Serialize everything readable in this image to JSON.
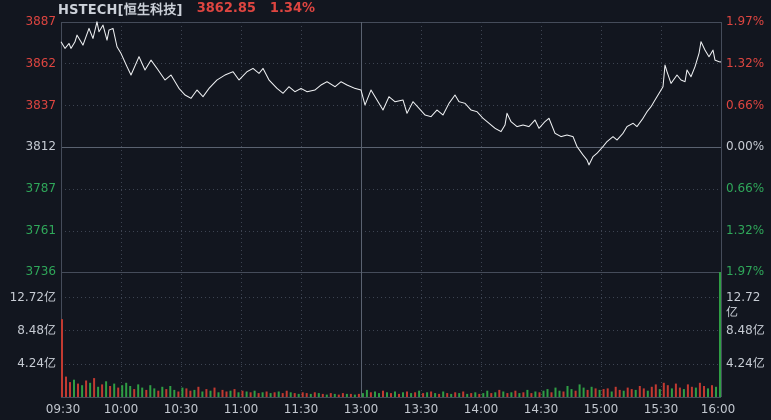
{
  "header": {
    "symbol": "HSTECH[恒生科技]",
    "price": "3862.85",
    "change_percent": "1.34%"
  },
  "colors": {
    "up": "#de4540",
    "down": "#2fa85a",
    "neutral_text": "#c7ccd4",
    "price_line": "#f3f5f7",
    "background": "#12161f",
    "grid_dotted": "#3d4452",
    "grid_solid": "#454c5a",
    "prev_close_line": "#5a6270",
    "volume_up": "#c23a31",
    "volume_down": "#2f9e44"
  },
  "axes": {
    "price": [
      {
        "text": "3887",
        "tone": "up"
      },
      {
        "text": "3862",
        "tone": "up"
      },
      {
        "text": "3837",
        "tone": "up"
      },
      {
        "text": "3812",
        "tone": "flat"
      },
      {
        "text": "3787",
        "tone": "down"
      },
      {
        "text": "3761",
        "tone": "down"
      },
      {
        "text": "3736",
        "tone": "down"
      }
    ],
    "percent": [
      {
        "text": "1.97%",
        "tone": "up"
      },
      {
        "text": "1.32%",
        "tone": "up"
      },
      {
        "text": "0.66%",
        "tone": "up"
      },
      {
        "text": "0.00%",
        "tone": "flat"
      },
      {
        "text": "0.66%",
        "tone": "down"
      },
      {
        "text": "1.32%",
        "tone": "down"
      },
      {
        "text": "1.97%",
        "tone": "down"
      }
    ],
    "volume_left": [
      "12.72亿",
      "8.48亿",
      "4.24亿"
    ],
    "volume_right": [
      "12.72亿",
      "8.48亿",
      "4.24亿"
    ],
    "time": [
      "09:30",
      "10:00",
      "10:30",
      "11:00",
      "11:30",
      "13:00",
      "13:30",
      "14:00",
      "14:30",
      "15:00",
      "15:30",
      "16:00"
    ]
  },
  "chart_data": {
    "type": "line",
    "title": "HSTECH 恒生科技 intraday price and volume",
    "prev_close": 3811.77,
    "last_price": 3862.85,
    "change_percent": 1.34,
    "day_high": 3887,
    "day_low": 3801,
    "ylim": [
      3736.68,
      3886.86
    ],
    "percent_levels": [
      1.97,
      1.32,
      0.66,
      0,
      -0.66,
      -1.32,
      -1.97
    ],
    "price_levels": [
      3887,
      3862,
      3837,
      3812,
      3787,
      3761,
      3736
    ],
    "x_ticks": [
      "09:30",
      "10:00",
      "10:30",
      "11:00",
      "11:30",
      "13:00",
      "13:30",
      "14:00",
      "14:30",
      "15:00",
      "15:30",
      "16:00"
    ],
    "session_break_tick_index": 5,
    "minutes_total": 330,
    "grid": "dotted",
    "series": [
      {
        "name": "price",
        "type": "line",
        "x_unit": "minutes_since_0930_trading",
        "points": [
          [
            0,
            3875
          ],
          [
            2,
            3871
          ],
          [
            4,
            3874
          ],
          [
            5,
            3871
          ],
          [
            7,
            3875
          ],
          [
            8,
            3879
          ],
          [
            11,
            3873
          ],
          [
            14,
            3883
          ],
          [
            16,
            3877
          ],
          [
            18,
            3887
          ],
          [
            19,
            3881
          ],
          [
            21,
            3885
          ],
          [
            23,
            3876
          ],
          [
            24,
            3882
          ],
          [
            26,
            3883
          ],
          [
            28,
            3872
          ],
          [
            30,
            3868
          ],
          [
            33,
            3860
          ],
          [
            35,
            3855
          ],
          [
            39,
            3866
          ],
          [
            42,
            3858
          ],
          [
            45,
            3864
          ],
          [
            48,
            3859
          ],
          [
            52,
            3852
          ],
          [
            55,
            3855
          ],
          [
            59,
            3847
          ],
          [
            62,
            3843
          ],
          [
            65,
            3841
          ],
          [
            68,
            3846
          ],
          [
            71,
            3842
          ],
          [
            74,
            3847
          ],
          [
            78,
            3852
          ],
          [
            82,
            3855
          ],
          [
            86,
            3857
          ],
          [
            89,
            3852
          ],
          [
            93,
            3857
          ],
          [
            96,
            3859
          ],
          [
            99,
            3856
          ],
          [
            101,
            3859
          ],
          [
            104,
            3852
          ],
          [
            108,
            3847
          ],
          [
            111,
            3844
          ],
          [
            114,
            3848
          ],
          [
            117,
            3845
          ],
          [
            120,
            3847
          ],
          [
            123,
            3845
          ],
          [
            127,
            3846
          ],
          [
            130,
            3849
          ],
          [
            133,
            3851
          ],
          [
            137,
            3848
          ],
          [
            140,
            3851
          ],
          [
            143,
            3849
          ],
          [
            147,
            3847
          ],
          [
            150,
            3846
          ],
          [
            152,
            3837
          ],
          [
            155,
            3846
          ],
          [
            158,
            3840
          ],
          [
            161,
            3834
          ],
          [
            164,
            3842
          ],
          [
            167,
            3839
          ],
          [
            171,
            3840
          ],
          [
            173,
            3832
          ],
          [
            176,
            3839
          ],
          [
            179,
            3835
          ],
          [
            182,
            3831
          ],
          [
            185,
            3830
          ],
          [
            188,
            3834
          ],
          [
            191,
            3831
          ],
          [
            194,
            3838
          ],
          [
            197,
            3843
          ],
          [
            199,
            3839
          ],
          [
            202,
            3838
          ],
          [
            205,
            3834
          ],
          [
            208,
            3833
          ],
          [
            211,
            3829
          ],
          [
            214,
            3826
          ],
          [
            217,
            3823
          ],
          [
            220,
            3821
          ],
          [
            222,
            3825
          ],
          [
            223,
            3832
          ],
          [
            225,
            3827
          ],
          [
            228,
            3824
          ],
          [
            231,
            3825
          ],
          [
            234,
            3824
          ],
          [
            237,
            3828
          ],
          [
            239,
            3823
          ],
          [
            242,
            3827
          ],
          [
            244,
            3829
          ],
          [
            247,
            3820
          ],
          [
            250,
            3818
          ],
          [
            253,
            3819
          ],
          [
            256,
            3818
          ],
          [
            258,
            3812
          ],
          [
            261,
            3807
          ],
          [
            263,
            3804
          ],
          [
            264,
            3801
          ],
          [
            266,
            3806
          ],
          [
            268,
            3808
          ],
          [
            271,
            3812
          ],
          [
            273,
            3815
          ],
          [
            276,
            3818
          ],
          [
            278,
            3816
          ],
          [
            281,
            3820
          ],
          [
            283,
            3824
          ],
          [
            286,
            3826
          ],
          [
            288,
            3824
          ],
          [
            291,
            3829
          ],
          [
            293,
            3833
          ],
          [
            295,
            3836
          ],
          [
            297,
            3840
          ],
          [
            301,
            3848
          ],
          [
            302,
            3861
          ],
          [
            303,
            3857
          ],
          [
            305,
            3850
          ],
          [
            308,
            3855
          ],
          [
            310,
            3852
          ],
          [
            312,
            3851
          ],
          [
            313,
            3858
          ],
          [
            315,
            3854
          ],
          [
            317,
            3860
          ],
          [
            319,
            3868
          ],
          [
            320,
            3875
          ],
          [
            322,
            3870
          ],
          [
            324,
            3866
          ],
          [
            326,
            3870
          ],
          [
            327,
            3864
          ],
          [
            329,
            3863
          ],
          [
            330,
            3862.85
          ]
        ]
      },
      {
        "name": "volume",
        "type": "bar",
        "unit": "亿",
        "interval_minutes": 2,
        "ylim": [
          0,
          13.5
        ],
        "gridlines": [
          4.24,
          8.48,
          12.72
        ],
        "sign_meaning": "positive = up-tick (red), negative = down-tick (green)",
        "values": [
          9.9,
          2.6,
          1.9,
          -2.2,
          1.7,
          -1.5,
          2.1,
          -1.8,
          2.4,
          -1.3,
          1.6,
          -2.0,
          1.4,
          -1.7,
          1.2,
          -1.5,
          -1.8,
          -1.4,
          1.0,
          -1.6,
          -1.2,
          0.9,
          -1.5,
          -1.1,
          0.8,
          -1.3,
          1.0,
          -1.4,
          -0.9,
          0.7,
          -1.2,
          1.1,
          0.8,
          -0.9,
          1.3,
          -0.7,
          1.0,
          -0.8,
          1.2,
          -0.6,
          0.9,
          0.7,
          -0.8,
          1.0,
          -0.6,
          0.8,
          -0.7,
          0.6,
          -0.8,
          0.5,
          -0.6,
          0.7,
          -0.5,
          0.6,
          -0.7,
          0.5,
          0.8,
          -0.6,
          0.5,
          -0.4,
          0.6,
          0.5,
          -0.4,
          0.6,
          -0.5,
          0.4,
          -0.3,
          0.5,
          -0.4,
          0.3,
          0.5,
          -0.4,
          0.4,
          -0.3,
          0.4,
          -0.5,
          -0.9,
          0.6,
          -0.7,
          -0.5,
          0.8,
          -0.6,
          0.5,
          -0.7,
          0.4,
          -0.6,
          0.7,
          -0.5,
          0.6,
          -0.8,
          0.5,
          -0.6,
          0.7,
          -0.5,
          0.4,
          -0.7,
          0.5,
          -0.4,
          0.6,
          -0.5,
          0.7,
          -0.4,
          0.5,
          -0.6,
          0.4,
          -0.5,
          -0.8,
          0.5,
          -0.6,
          0.9,
          -0.7,
          0.5,
          -0.6,
          0.8,
          -0.5,
          0.6,
          -0.9,
          0.5,
          -0.7,
          0.6,
          -0.8,
          -1.0,
          0.6,
          -1.2,
          -0.8,
          0.7,
          -1.4,
          -1.0,
          0.8,
          -1.6,
          -1.2,
          0.9,
          -1.3,
          1.1,
          -0.9,
          1.0,
          1.1,
          -0.7,
          1.3,
          0.9,
          -0.8,
          1.2,
          1.0,
          -0.9,
          1.4,
          1.1,
          -0.8,
          1.3,
          1.6,
          -1.0,
          1.8,
          1.5,
          -1.1,
          1.7,
          1.2,
          -1.0,
          1.6,
          1.3,
          -1.2,
          1.8,
          1.4,
          -1.1,
          1.5,
          -1.3,
          -16.0
        ]
      }
    ]
  }
}
